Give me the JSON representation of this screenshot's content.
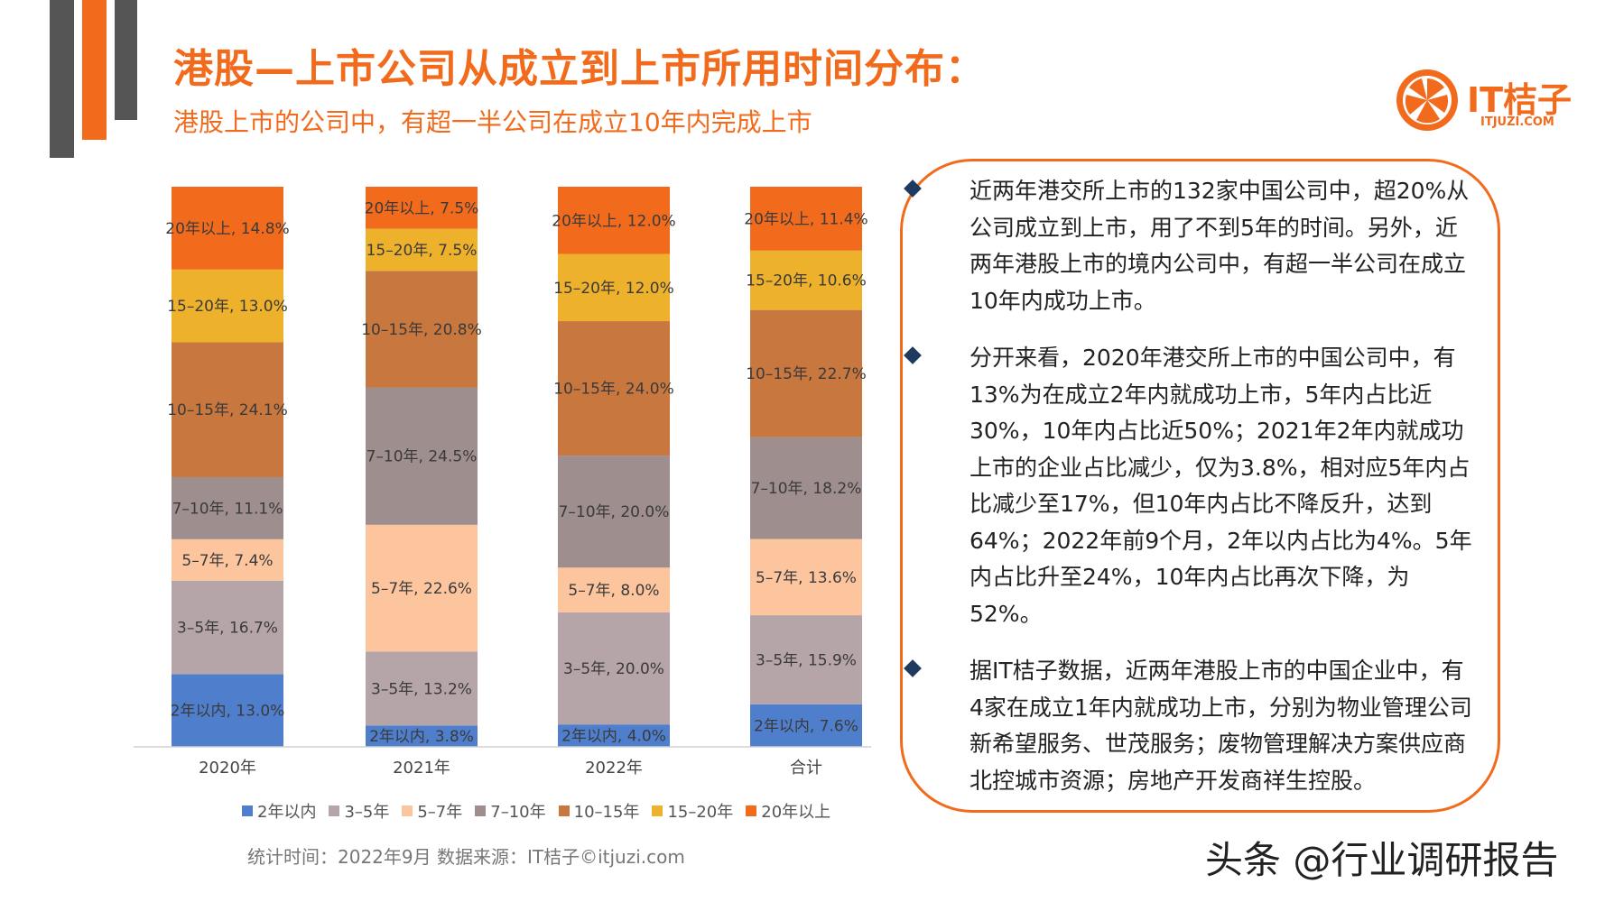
{
  "header": {
    "title": "港股—上市公司从成立到上市所用时间分布：",
    "subtitle": "港股上市的公司中，有超一半公司在成立10年内完成上市"
  },
  "logo": {
    "brand": "IT桔子",
    "url": "ITJUZI.COM"
  },
  "colors": {
    "accent": "#F26B1D",
    "deco_gray": "#555555"
  },
  "chart_data": {
    "type": "bar",
    "stacked": true,
    "normalized": true,
    "categories": [
      "2020年",
      "2021年",
      "2022年",
      "合计"
    ],
    "series": [
      {
        "name": "2年以内",
        "values": [
          13.0,
          3.8,
          4.0,
          7.6
        ],
        "color": "#4F7FCC"
      },
      {
        "name": "3–5年",
        "values": [
          16.7,
          13.2,
          20.0,
          15.9
        ],
        "color": "#B5A4A8"
      },
      {
        "name": "5–7年",
        "values": [
          7.4,
          22.6,
          8.0,
          13.6
        ],
        "color": "#FCC59E"
      },
      {
        "name": "7–10年",
        "values": [
          11.1,
          24.5,
          20.0,
          18.2
        ],
        "color": "#9E8E8E"
      },
      {
        "name": "10–15年",
        "values": [
          24.1,
          20.8,
          24.0,
          22.7
        ],
        "color": "#C8773F"
      },
      {
        "name": "15–20年",
        "values": [
          13.0,
          7.5,
          12.0,
          10.6
        ],
        "color": "#EEB12B"
      },
      {
        "name": "20年以上",
        "values": [
          14.8,
          7.5,
          12.0,
          11.4
        ],
        "color": "#F26B1D"
      }
    ],
    "data_labels": [
      [
        "2年以内, 13.0%",
        "3–5年, 16.7%",
        "5–7年, 7.4%",
        "7–10年, 11.1%",
        "10–15年, 24.1%",
        "15–20年, 13.0%",
        "20年以上, 14.8%"
      ],
      [
        "2年以内, 3.8%",
        "3–5年, 13.2%",
        "5–7年, 22.6%",
        "7–10年, 24.5%",
        "10–15年, 20.8%",
        "15–20年, 7.5%",
        "20年以上, 7.5%"
      ],
      [
        "2年以内, 4.0%",
        "3–5年, 20.0%",
        "5–7年, 8.0%",
        "7–10年, 20.0%",
        "10–15年, 24.0%",
        "15–20年, 12.0%",
        "20年以上, 12.0%"
      ],
      [
        "2年以内, 7.6%",
        "3–5年, 15.9%",
        "5–7年, 13.6%",
        "7–10年, 18.2%",
        "10–15年, 22.7%",
        "15–20年, 10.6%",
        "20年以上, 11.4%"
      ]
    ],
    "title": "",
    "xlabel": "",
    "ylabel": "",
    "ylim": [
      0,
      100
    ],
    "grid": false,
    "legend_position": "bottom"
  },
  "footer": {
    "source": "统计时间：2022年9月  数据来源：IT桔子©itjuzi.com"
  },
  "notes": [
    "近两年港交所上市的132家中国公司中，超20%从公司成立到上市，用了不到5年的时间。另外，近两年港股上市的境内公司中，有超一半公司在成立10年内成功上市。",
    "分开来看，2020年港交所上市的中国公司中，有13%为在成立2年内就成功上市，5年内占比近30%，10年内占比近50%；2021年2年内就成功上市的企业占比减少，仅为3.8%，相对应5年内占比减少至17%，但10年内占比不降反升，达到64%；2022年前9个月，2年以内占比为4%。5年内占比升至24%，10年内占比再次下降，为52%。",
    "据IT桔子数据，近两年港股上市的中国企业中，有4家在成立1年内就成功上市，分别为物业管理公司新希望服务、世茂服务；废物管理解决方案供应商北控城市资源；房地产开发商祥生控股。"
  ],
  "watermark": "头条 @行业调研报告"
}
